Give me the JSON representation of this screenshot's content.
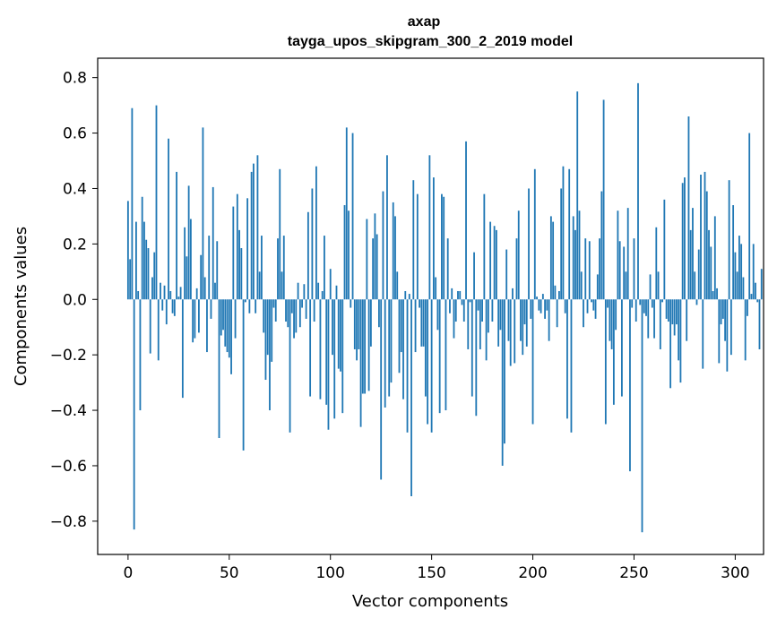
{
  "chart_data": {
    "type": "bar",
    "title": "axap",
    "subtitle": "tayga_upos_skipgram_300_2_2019 model",
    "xlabel": "Vector components",
    "ylabel": "Components values",
    "xlim": [
      -15,
      314
    ],
    "ylim": [
      -0.92,
      0.87
    ],
    "x_ticks": [
      0,
      50,
      100,
      150,
      200,
      250,
      300
    ],
    "y_ticks": [
      -0.8,
      -0.6,
      -0.4,
      -0.2,
      0.0,
      0.2,
      0.4,
      0.6,
      0.8
    ],
    "x_tick_labels": [
      "0",
      "50",
      "100",
      "150",
      "200",
      "250",
      "300"
    ],
    "y_tick_labels": [
      "−0.8",
      "−0.6",
      "−0.4",
      "−0.2",
      "0.0",
      "0.2",
      "0.4",
      "0.6",
      "0.8"
    ],
    "grid": false,
    "bar_color": "#1f77b4",
    "values": [
      0.355,
      0.145,
      0.69,
      -0.83,
      0.28,
      0.03,
      -0.4,
      0.37,
      0.28,
      0.215,
      0.185,
      -0.195,
      0.08,
      0.17,
      0.7,
      -0.22,
      0.06,
      -0.04,
      0.05,
      -0.09,
      0.58,
      0.03,
      -0.05,
      -0.06,
      0.46,
      0.01,
      0.045,
      -0.355,
      0.26,
      0.155,
      0.41,
      0.29,
      -0.155,
      -0.14,
      0.04,
      -0.12,
      0.16,
      0.62,
      0.08,
      -0.19,
      0.23,
      -0.07,
      0.405,
      0.06,
      0.21,
      -0.5,
      -0.13,
      -0.11,
      -0.17,
      -0.19,
      -0.21,
      -0.27,
      0.335,
      -0.14,
      0.38,
      0.25,
      0.185,
      -0.545,
      -0.01,
      0.365,
      -0.05,
      0.46,
      0.49,
      -0.05,
      0.52,
      0.1,
      0.23,
      -0.12,
      -0.29,
      -0.2,
      -0.4,
      -0.225,
      -0.03,
      -0.08,
      0.22,
      0.47,
      0.1,
      0.23,
      -0.08,
      -0.1,
      -0.48,
      -0.05,
      -0.14,
      -0.12,
      0.06,
      -0.1,
      -0.03,
      0.055,
      -0.07,
      0.315,
      -0.35,
      0.4,
      -0.08,
      0.48,
      0.06,
      -0.36,
      0.03,
      0.23,
      -0.38,
      -0.47,
      0.11,
      -0.2,
      -0.43,
      0.05,
      -0.25,
      -0.26,
      -0.41,
      0.34,
      0.62,
      0.32,
      -0.03,
      0.6,
      -0.18,
      -0.22,
      -0.18,
      -0.46,
      -0.34,
      -0.34,
      0.29,
      -0.33,
      -0.17,
      0.22,
      0.31,
      0.235,
      -0.1,
      -0.65,
      0.39,
      -0.39,
      0.52,
      -0.35,
      -0.3,
      0.35,
      0.3,
      0.1,
      -0.265,
      -0.19,
      -0.36,
      0.03,
      -0.48,
      0.02,
      -0.71,
      0.43,
      -0.19,
      0.38,
      -0.03,
      -0.17,
      -0.17,
      -0.35,
      -0.45,
      0.52,
      -0.48,
      0.44,
      0.08,
      -0.11,
      -0.41,
      0.38,
      0.37,
      -0.4,
      0.22,
      -0.05,
      0.04,
      -0.14,
      -0.08,
      0.03,
      0.03,
      -0.02,
      -0.08,
      0.57,
      -0.18,
      -0.01,
      -0.35,
      0.17,
      -0.42,
      -0.04,
      -0.18,
      -0.08,
      0.38,
      -0.22,
      -0.12,
      0.28,
      -0.08,
      0.265,
      0.25,
      -0.17,
      -0.11,
      -0.6,
      -0.52,
      0.18,
      -0.15,
      -0.24,
      0.04,
      -0.23,
      0.22,
      0.32,
      -0.15,
      -0.2,
      -0.09,
      -0.17,
      0.4,
      -0.07,
      -0.45,
      0.47,
      0.01,
      -0.04,
      -0.05,
      0.02,
      -0.07,
      -0.04,
      -0.15,
      0.3,
      0.28,
      0.05,
      -0.1,
      0.03,
      0.4,
      0.48,
      -0.05,
      -0.43,
      0.47,
      -0.48,
      0.3,
      0.25,
      0.75,
      0.32,
      0.1,
      -0.1,
      0.22,
      -0.05,
      0.21,
      -0.01,
      -0.04,
      -0.07,
      0.09,
      0.22,
      0.39,
      0.72,
      -0.45,
      -0.03,
      -0.15,
      -0.18,
      -0.38,
      -0.11,
      0.32,
      0.21,
      -0.35,
      0.19,
      0.1,
      0.33,
      -0.62,
      -0.03,
      0.22,
      -0.08,
      0.78,
      -0.02,
      -0.84,
      -0.05,
      -0.06,
      -0.14,
      0.09,
      -0.03,
      -0.14,
      0.26,
      0.1,
      -0.18,
      -0.01,
      0.36,
      -0.07,
      -0.08,
      -0.32,
      -0.09,
      -0.13,
      -0.09,
      -0.22,
      -0.3,
      0.42,
      0.44,
      -0.15,
      0.66,
      0.25,
      0.33,
      0.1,
      -0.02,
      0.18,
      0.45,
      -0.25,
      0.46,
      0.39,
      0.25,
      0.19,
      0.03,
      0.3,
      0.04,
      -0.23,
      -0.09,
      -0.07,
      -0.15,
      -0.26,
      0.43,
      -0.2,
      0.34,
      0.17,
      0.1,
      0.23,
      0.2,
      0.08,
      -0.22,
      -0.06,
      0.6,
      0.02,
      0.2,
      0.06,
      -0.01,
      -0.18,
      0.11
    ]
  }
}
